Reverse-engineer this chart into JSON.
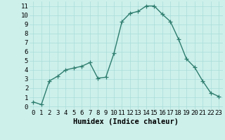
{
  "x": [
    0,
    1,
    2,
    3,
    4,
    5,
    6,
    7,
    8,
    9,
    10,
    11,
    12,
    13,
    14,
    15,
    16,
    17,
    18,
    19,
    20,
    21,
    22,
    23
  ],
  "y": [
    0.5,
    0.2,
    2.8,
    3.3,
    4.0,
    4.2,
    4.4,
    4.8,
    3.1,
    3.2,
    5.8,
    9.3,
    10.2,
    10.4,
    11.0,
    11.0,
    10.1,
    9.3,
    7.4,
    5.2,
    4.3,
    2.8,
    1.5,
    1.1
  ],
  "line_color": "#2e7d6e",
  "marker": "+",
  "marker_size": 4,
  "bg_color": "#cdf0eb",
  "grid_color": "#a8ddd8",
  "xlabel": "Humidex (Indice chaleur)",
  "xlim": [
    -0.5,
    23.5
  ],
  "ylim": [
    -0.3,
    11.5
  ],
  "xtick_labels": [
    "0",
    "1",
    "2",
    "3",
    "4",
    "5",
    "6",
    "7",
    "8",
    "9",
    "10",
    "11",
    "12",
    "13",
    "14",
    "15",
    "16",
    "17",
    "18",
    "19",
    "20",
    "21",
    "22",
    "23"
  ],
  "ytick_vals": [
    0,
    1,
    2,
    3,
    4,
    5,
    6,
    7,
    8,
    9,
    10,
    11
  ],
  "xlabel_fontsize": 7.5,
  "tick_fontsize": 6.5,
  "line_width": 1.0
}
